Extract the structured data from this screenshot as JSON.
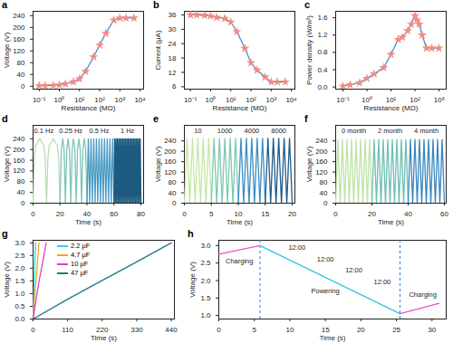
{
  "chart_data": [
    {
      "panel": "a",
      "type": "line",
      "log": "x",
      "x_label": "Resistance (MΩ)",
      "y_label": "Voltage (V)",
      "xlim": [
        0.05,
        15000
      ],
      "ylim": [
        -10,
        255
      ],
      "xticks": [
        {
          "value": 0.1,
          "label": "10⁻¹"
        },
        {
          "value": 1,
          "label": "10⁰"
        },
        {
          "value": 10,
          "label": "10¹"
        },
        {
          "value": 100,
          "label": "10²"
        },
        {
          "value": 1000,
          "label": "10³"
        },
        {
          "value": 10000,
          "label": "10⁴"
        }
      ],
      "yticks": [
        0,
        40,
        80,
        120,
        160,
        200,
        240
      ],
      "x": [
        0.1,
        0.2,
        0.5,
        1,
        2,
        5,
        10,
        20,
        50,
        100,
        200,
        500,
        1000,
        2000,
        5000
      ],
      "series": [
        {
          "color": "#4a8cc4",
          "marker": "star",
          "values": [
            2,
            2,
            3,
            4,
            8,
            15,
            25,
            50,
            100,
            140,
            180,
            225,
            232,
            232,
            232
          ]
        }
      ]
    },
    {
      "panel": "b",
      "type": "line",
      "log": "x",
      "x_label": "Resistance (MΩ)",
      "y_label": "Current (μA)",
      "xlim": [
        0.05,
        15000
      ],
      "ylim": [
        5,
        37.5
      ],
      "xticks": [
        {
          "value": 0.1,
          "label": "10⁻¹"
        },
        {
          "value": 1,
          "label": "10⁰"
        },
        {
          "value": 10,
          "label": "10¹"
        },
        {
          "value": 100,
          "label": "10²"
        },
        {
          "value": 1000,
          "label": "10³"
        },
        {
          "value": 10000,
          "label": "10⁴"
        }
      ],
      "yticks": [
        6,
        12,
        18,
        24,
        30,
        36
      ],
      "x": [
        0.1,
        0.2,
        0.5,
        1,
        2,
        5,
        10,
        20,
        50,
        100,
        200,
        500,
        1000,
        2000,
        5000
      ],
      "series": [
        {
          "color": "#4a8cc4",
          "marker": "star",
          "values": [
            36,
            36,
            35.8,
            35.5,
            35,
            34.5,
            33,
            29,
            22,
            16,
            13,
            10,
            8,
            8,
            8
          ]
        }
      ]
    },
    {
      "panel": "c",
      "type": "line",
      "log": "x",
      "x_label": "Resistance (MΩ)",
      "y_label": "Power density (W/m²)",
      "xlim": [
        0.05,
        2000
      ],
      "ylim": [
        -0.05,
        1.75
      ],
      "xticks": [
        {
          "value": 0.1,
          "label": "10⁻¹"
        },
        {
          "value": 1,
          "label": "10⁰"
        },
        {
          "value": 10,
          "label": "10¹"
        },
        {
          "value": 100,
          "label": "10²"
        },
        {
          "value": 1000,
          "label": "10³"
        }
      ],
      "yticks": [
        {
          "value": 0,
          "label": "0.0"
        },
        0.4,
        0.8,
        1.2,
        1.6
      ],
      "x": [
        0.1,
        0.2,
        0.5,
        1,
        2,
        5,
        10,
        20,
        30,
        50,
        70,
        100,
        120,
        150,
        200,
        300,
        500,
        1000
      ],
      "series": [
        {
          "color": "#4a8cc4",
          "marker": "star",
          "values": [
            0.02,
            0.05,
            0.1,
            0.2,
            0.3,
            0.45,
            0.75,
            1.1,
            1.15,
            1.3,
            1.45,
            1.65,
            1.55,
            1.45,
            1.2,
            0.9,
            0.9,
            0.9
          ]
        }
      ]
    },
    {
      "panel": "d",
      "type": "line",
      "x_label": "Time (s)",
      "y_label": "Voltage (V)",
      "xlim": [
        0,
        82
      ],
      "ylim": [
        0,
        290
      ],
      "xticks": [
        0,
        20,
        40,
        60,
        80
      ],
      "yticks": [
        0,
        40,
        80,
        120,
        160,
        200,
        240
      ],
      "annotations": [
        {
          "text": "0.1 Hz",
          "x": 8,
          "y": 268
        },
        {
          "text": "0.25 Hz",
          "x": 28,
          "y": 268
        },
        {
          "text": "0.5 Hz",
          "x": 49,
          "y": 268
        },
        {
          "text": "1 Hz",
          "x": 70,
          "y": 268
        }
      ],
      "series": [
        {
          "color": "#b5dfb0",
          "x": [
            0,
            1,
            2,
            5,
            8,
            9,
            10,
            11,
            12,
            15,
            18,
            19,
            20
          ],
          "values": [
            0,
            170,
            215,
            240,
            215,
            170,
            0,
            170,
            215,
            240,
            215,
            170,
            0
          ]
        },
        {
          "color": "#7fc3b5",
          "x": [
            20,
            21,
            22,
            23,
            24,
            25,
            26,
            27,
            28,
            29,
            30,
            31,
            32,
            33,
            34,
            35,
            36,
            37,
            38,
            39,
            40
          ],
          "values": [
            0,
            200,
            240,
            200,
            0,
            200,
            240,
            200,
            0,
            200,
            240,
            200,
            0,
            200,
            240,
            200,
            0,
            200,
            240,
            200,
            0
          ]
        },
        {
          "color": "#4a9bc4",
          "x": [
            40,
            41,
            42,
            43,
            44,
            45,
            46,
            47,
            48,
            49,
            50,
            51,
            52,
            53,
            54,
            55,
            56,
            57,
            58,
            59,
            60
          ],
          "values": [
            0,
            240,
            0,
            240,
            0,
            240,
            0,
            240,
            0,
            240,
            0,
            240,
            0,
            240,
            0,
            240,
            0,
            240,
            0,
            240,
            0
          ]
        },
        {
          "color": "#1d5a80",
          "x": [
            60,
            60.5,
            61,
            61.5,
            62,
            62.5,
            63,
            63.5,
            64,
            64.5,
            65,
            65.5,
            66,
            66.5,
            67,
            67.5,
            68,
            68.5,
            69,
            69.5,
            70,
            70.5,
            71,
            71.5,
            72,
            72.5,
            73,
            73.5,
            74,
            74.5,
            75,
            75.5,
            76,
            76.5,
            77,
            77.5,
            78,
            78.5,
            79,
            79.5,
            80
          ],
          "values": [
            0,
            240,
            0,
            240,
            0,
            240,
            0,
            240,
            0,
            240,
            0,
            240,
            0,
            240,
            0,
            240,
            0,
            240,
            0,
            240,
            0,
            240,
            0,
            240,
            0,
            240,
            0,
            240,
            0,
            240,
            0,
            240,
            0,
            240,
            0,
            240,
            0,
            240,
            0,
            240,
            0
          ]
        }
      ]
    },
    {
      "panel": "e",
      "type": "line",
      "x_label": "Time (s)",
      "y_label": "Voltage (V)",
      "xlim": [
        0,
        20.5
      ],
      "ylim": [
        0,
        300
      ],
      "xticks": [
        0,
        5,
        10,
        15,
        20
      ],
      "yticks": [
        0,
        40,
        80,
        120,
        160,
        200,
        240
      ],
      "annotations": [
        {
          "text": "10",
          "x": 2.5,
          "y": 280
        },
        {
          "text": "1000",
          "x": 7.5,
          "y": 280
        },
        {
          "text": "4000",
          "x": 12.5,
          "y": 280
        },
        {
          "text": "8000",
          "x": 17.5,
          "y": 280
        }
      ],
      "series": [
        {
          "color": "#c5e6a6",
          "x": [
            0,
            0.5,
            1,
            1.5,
            2,
            2.5,
            3,
            3.5,
            4,
            4.5,
            5
          ],
          "values": [
            0,
            250,
            0,
            250,
            0,
            250,
            0,
            250,
            0,
            250,
            0
          ]
        },
        {
          "color": "#7dc9b0",
          "x": [
            5,
            5.5,
            6,
            6.5,
            7,
            7.5,
            8,
            8.5,
            9,
            9.5,
            10
          ],
          "values": [
            0,
            250,
            0,
            250,
            0,
            250,
            0,
            250,
            0,
            250,
            0
          ]
        },
        {
          "color": "#3a8fc2",
          "x": [
            10,
            10.5,
            11,
            11.5,
            12,
            12.5,
            13,
            13.5,
            14,
            14.5,
            15
          ],
          "values": [
            0,
            250,
            0,
            250,
            0,
            250,
            0,
            250,
            0,
            250,
            0
          ]
        },
        {
          "color": "#1f5d8c",
          "x": [
            15,
            15.5,
            16,
            16.5,
            17,
            17.5,
            18,
            18.5,
            19,
            19.5,
            20
          ],
          "values": [
            0,
            250,
            0,
            250,
            0,
            250,
            0,
            250,
            0,
            250,
            0
          ]
        }
      ]
    },
    {
      "panel": "f",
      "type": "line",
      "x_label": "Time (s)",
      "y_label": "Voltage (V)",
      "xlim": [
        0,
        61
      ],
      "ylim": [
        0,
        300
      ],
      "xticks": [
        0,
        20,
        40,
        60
      ],
      "yticks": [
        0,
        40,
        80,
        120,
        160,
        200,
        240
      ],
      "annotations": [
        {
          "text": "0 month",
          "x": 10,
          "y": 280
        },
        {
          "text": "2 month",
          "x": 30,
          "y": 280
        },
        {
          "text": "4 month",
          "x": 50,
          "y": 280
        }
      ],
      "series": [
        {
          "color": "#bfe3a8",
          "x": [
            0,
            1.25,
            2.5,
            3.75,
            5,
            6.25,
            7.5,
            8.75,
            10,
            11.25,
            12.5,
            13.75,
            15,
            16.25,
            17.5,
            18.75,
            20
          ],
          "values": [
            0,
            245,
            0,
            245,
            0,
            245,
            0,
            245,
            0,
            245,
            0,
            245,
            0,
            245,
            0,
            245,
            0
          ]
        },
        {
          "color": "#6fbfb3",
          "x": [
            20,
            21.25,
            22.5,
            23.75,
            25,
            26.25,
            27.5,
            28.75,
            30,
            31.25,
            32.5,
            33.75,
            35,
            36.25,
            37.5,
            38.75,
            40
          ],
          "values": [
            0,
            245,
            0,
            245,
            0,
            245,
            0,
            245,
            0,
            245,
            0,
            245,
            0,
            245,
            0,
            245,
            0
          ]
        },
        {
          "color": "#3b86bf",
          "x": [
            40,
            41.25,
            42.5,
            43.75,
            45,
            46.25,
            47.5,
            48.75,
            50,
            51.25,
            52.5,
            53.75,
            55,
            56.25,
            57.5,
            58.75,
            60
          ],
          "values": [
            0,
            245,
            0,
            245,
            0,
            245,
            0,
            245,
            0,
            245,
            0,
            245,
            0,
            245,
            0,
            245,
            0
          ]
        }
      ]
    },
    {
      "panel": "g",
      "type": "line",
      "x_label": "Time (s)",
      "y_label": "Voltage (V)",
      "legend": "top",
      "xlim": [
        0,
        450
      ],
      "ylim": [
        0,
        3.1
      ],
      "xticks": [
        0,
        110,
        220,
        330,
        440
      ],
      "yticks": [
        {
          "value": 0,
          "label": "0.0"
        },
        0.5,
        {
          "value": 1,
          "label": "1.0"
        },
        1.5,
        {
          "value": 2,
          "label": "2.0"
        },
        2.5,
        {
          "value": 3,
          "label": "3.0"
        }
      ],
      "series": [
        {
          "name": "2.2 μF",
          "color": "#33d0e0",
          "x": [
            0,
            2,
            4,
            6,
            8
          ],
          "values": [
            0,
            0.85,
            1.6,
            2.3,
            3.0
          ]
        },
        {
          "name": "4.7 μF",
          "color": "#f5a623",
          "x": [
            0,
            5,
            10,
            15,
            19
          ],
          "values": [
            0,
            0.85,
            1.6,
            2.4,
            3.0
          ]
        },
        {
          "name": "10 μF",
          "color": "#e040c8",
          "x": [
            0,
            10,
            20,
            30,
            42
          ],
          "values": [
            0,
            0.8,
            1.55,
            2.2,
            3.0
          ]
        },
        {
          "name": "47 μF",
          "color": "#1b7a8a",
          "x": [
            0,
            110,
            220,
            330,
            440
          ],
          "values": [
            0,
            0.78,
            1.52,
            2.25,
            3.0
          ]
        }
      ]
    },
    {
      "panel": "h",
      "type": "line",
      "x_label": "Time (s)",
      "y_label": "Voltage (V)",
      "xlim": [
        0,
        32
      ],
      "ylim": [
        0.9,
        3.15
      ],
      "xticks": [
        0,
        5,
        10,
        15,
        20,
        25,
        30
      ],
      "yticks": [
        {
          "value": 1,
          "label": "1.0"
        },
        1.5,
        {
          "value": 2,
          "label": "2.0"
        },
        2.5,
        {
          "value": 3,
          "label": "3.0"
        }
      ],
      "vlines": {
        "x": [
          5.8,
          25.5
        ],
        "color": "#3b7dd8",
        "line_style": "dashed"
      },
      "annotations": [
        {
          "text": "Charging",
          "x": 2.9,
          "y": 2.55
        },
        {
          "text": "Powering",
          "x": 15,
          "y": 1.7
        },
        {
          "text": "Charging",
          "x": 28.7,
          "y": 1.6
        },
        {
          "text": "12:00",
          "x": 11,
          "y": 2.95
        },
        {
          "text": "12:00",
          "x": 15,
          "y": 2.6
        },
        {
          "text": "12:00",
          "x": 19,
          "y": 2.3
        },
        {
          "text": "12:00",
          "x": 23,
          "y": 1.95
        }
      ],
      "series": [
        {
          "color": "#e754c8",
          "x": [
            0,
            5.8
          ],
          "values": [
            2.75,
            3.0
          ]
        },
        {
          "color": "#34c6e0",
          "x": [
            5.8,
            25.5
          ],
          "values": [
            3.0,
            1.05
          ]
        },
        {
          "color": "#e754c8",
          "x": [
            25.5,
            31
          ],
          "values": [
            1.05,
            1.35
          ]
        }
      ]
    }
  ]
}
